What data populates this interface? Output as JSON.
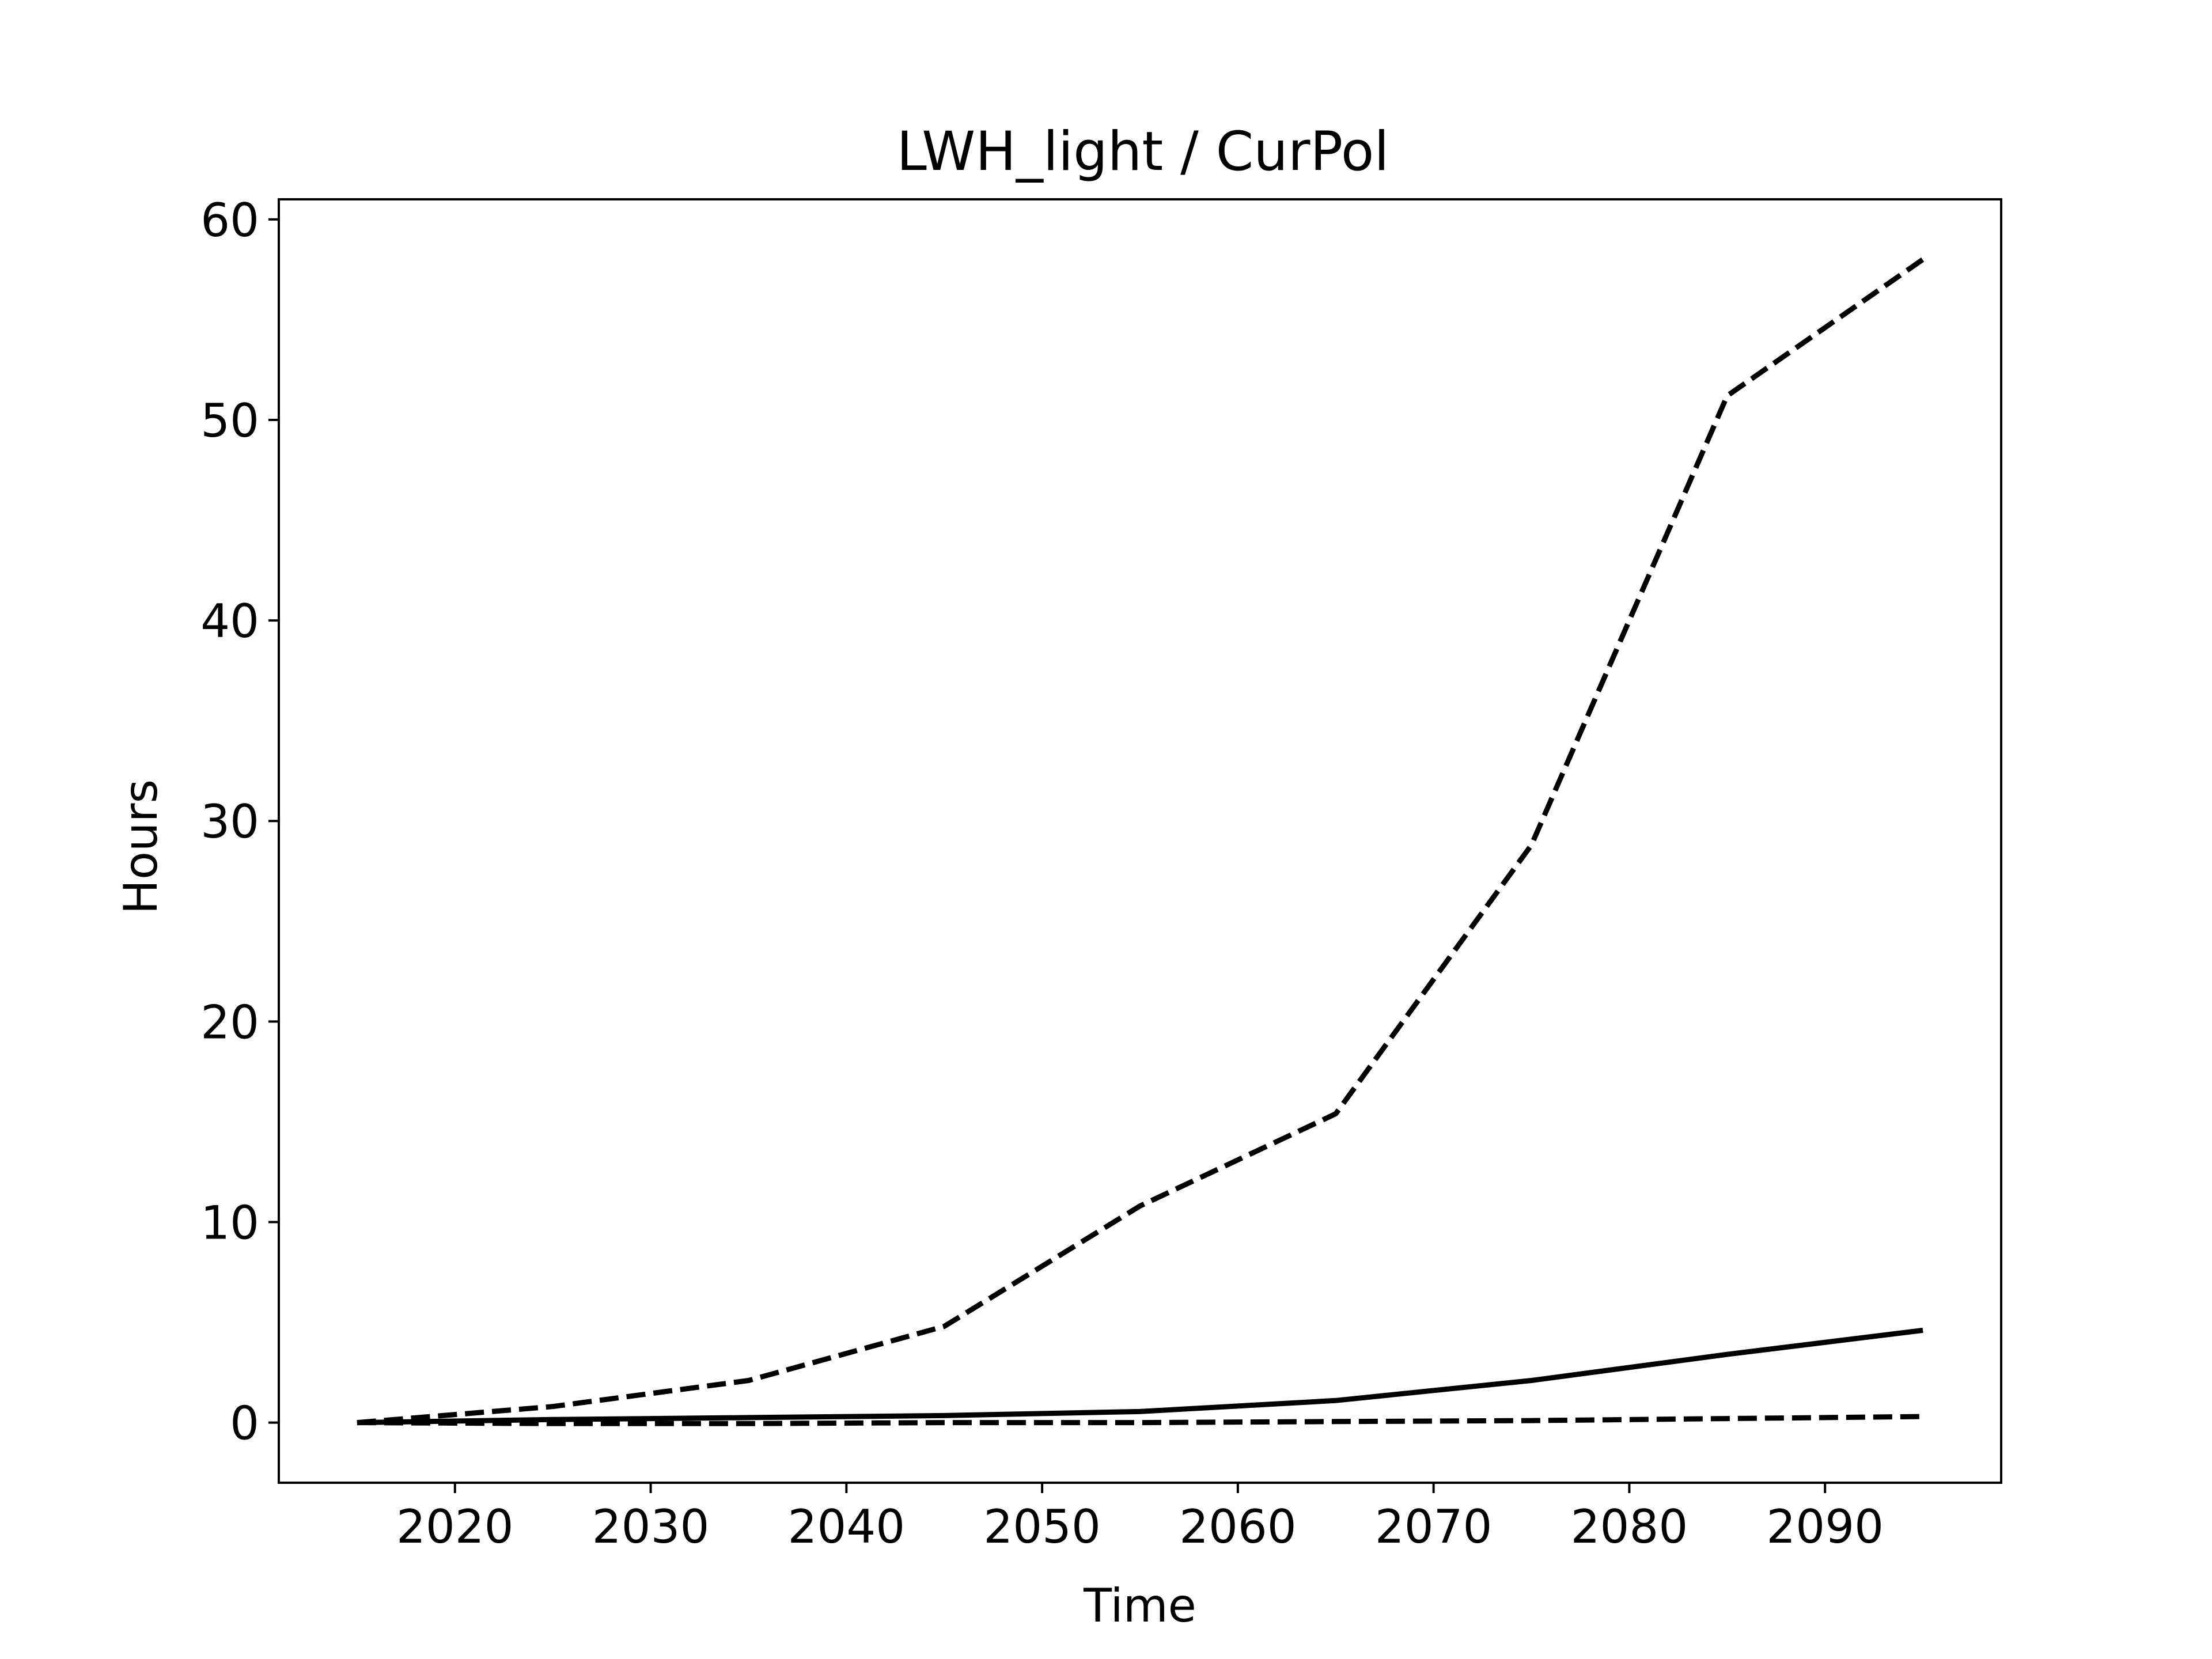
{
  "chart_data": {
    "type": "line",
    "title": "LWH_light / CurPol",
    "xlabel": "Time",
    "ylabel": "Hours",
    "xlim": [
      2011,
      2099
    ],
    "ylim": [
      -3,
      61
    ],
    "x_ticks": [
      "2020",
      "2030",
      "2040",
      "2050",
      "2060",
      "2070",
      "2080",
      "2090"
    ],
    "y_ticks": [
      "0",
      "10",
      "20",
      "30",
      "40",
      "50",
      "60"
    ],
    "grid": false,
    "x": [
      2015,
      2025,
      2035,
      2045,
      2055,
      2065,
      2075,
      2085,
      2095
    ],
    "series": [
      {
        "line_style": "dashed",
        "color": "#000000",
        "values": [
          0.0,
          0.8,
          2.1,
          4.8,
          10.8,
          15.4,
          28.8,
          51.2,
          58.0
        ]
      },
      {
        "line_style": "solid",
        "color": "#000000",
        "values": [
          0.0,
          0.15,
          0.25,
          0.35,
          0.55,
          1.1,
          2.1,
          3.4,
          4.6
        ]
      },
      {
        "line_style": "dashed",
        "color": "#000000",
        "values": [
          0.0,
          -0.05,
          -0.05,
          0.0,
          0.0,
          0.05,
          0.1,
          0.2,
          0.3
        ]
      }
    ]
  }
}
